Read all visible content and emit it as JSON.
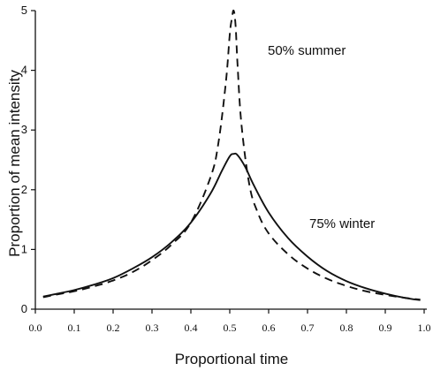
{
  "chart_data": {
    "type": "line",
    "title": "",
    "xlabel": "Proportional time",
    "ylabel": "Proportion of mean intensity",
    "xlim": [
      0.0,
      1.0
    ],
    "ylim": [
      0,
      5
    ],
    "grid": false,
    "legend": "none",
    "x_ticks": [
      "0.0",
      "0.1",
      "0.2",
      "0.3",
      "0.4",
      "0.5",
      "0.6",
      "0.7",
      "0.8",
      "0.9",
      "1.0"
    ],
    "y_ticks": [
      "0",
      "1",
      "2",
      "3",
      "4",
      "5"
    ],
    "series": [
      {
        "name": "75% winter",
        "style": "solid",
        "x": [
          0.02,
          0.05,
          0.1,
          0.15,
          0.2,
          0.25,
          0.3,
          0.35,
          0.4,
          0.45,
          0.48,
          0.5,
          0.51,
          0.52,
          0.54,
          0.56,
          0.6,
          0.65,
          0.7,
          0.75,
          0.8,
          0.85,
          0.9,
          0.95,
          0.99
        ],
        "y": [
          0.21,
          0.25,
          0.32,
          0.41,
          0.52,
          0.68,
          0.87,
          1.12,
          1.45,
          1.93,
          2.32,
          2.56,
          2.6,
          2.58,
          2.38,
          2.1,
          1.62,
          1.19,
          0.88,
          0.64,
          0.47,
          0.35,
          0.26,
          0.19,
          0.15
        ]
      },
      {
        "name": "50% summer",
        "style": "dashed",
        "x": [
          0.02,
          0.05,
          0.1,
          0.15,
          0.2,
          0.25,
          0.3,
          0.35,
          0.4,
          0.45,
          0.47,
          0.49,
          0.5,
          0.505,
          0.51,
          0.515,
          0.52,
          0.53,
          0.55,
          0.57,
          0.6,
          0.65,
          0.7,
          0.75,
          0.8,
          0.85,
          0.9,
          0.95,
          0.99
        ],
        "y": [
          0.2,
          0.24,
          0.3,
          0.38,
          0.48,
          0.62,
          0.82,
          1.08,
          1.45,
          2.2,
          2.75,
          3.8,
          4.6,
          4.85,
          5.0,
          4.75,
          4.1,
          3.1,
          2.1,
          1.65,
          1.27,
          0.92,
          0.68,
          0.51,
          0.39,
          0.3,
          0.24,
          0.19,
          0.16
        ]
      }
    ],
    "annotations": [
      {
        "text": "50% summer",
        "series": "50% summer"
      },
      {
        "text": "75% winter",
        "series": "75% winter"
      }
    ]
  }
}
